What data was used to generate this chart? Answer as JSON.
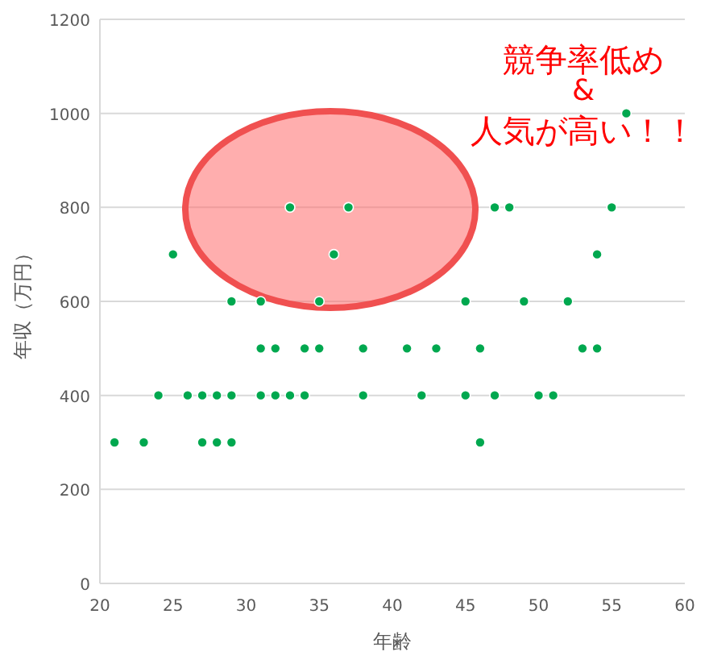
{
  "chart_data": {
    "type": "scatter",
    "xlabel": "年齢",
    "ylabel": "年収（万円）",
    "annotations": [
      "競争率低め",
      "&",
      "人気が高い！！"
    ],
    "xlim": [
      20,
      60
    ],
    "xticks": [
      20,
      25,
      30,
      35,
      40,
      45,
      50,
      55,
      60
    ],
    "ylim": [
      0,
      1200
    ],
    "yticks": [
      0,
      200,
      400,
      600,
      800,
      1000,
      1200
    ],
    "grid": "y",
    "marker": "circle",
    "series": [
      {
        "color": "#00a84f",
        "x": [
          21,
          23,
          27,
          28,
          29,
          46,
          24,
          26,
          27,
          28,
          29,
          31,
          32,
          33,
          34,
          38,
          42,
          45,
          47,
          50,
          51,
          31,
          32,
          34,
          35,
          38,
          41,
          43,
          46,
          53,
          54,
          29,
          31,
          35,
          45,
          49,
          52,
          25,
          36,
          54,
          33,
          37,
          47,
          48,
          55,
          56
        ],
        "values": [
          300,
          300,
          300,
          300,
          300,
          300,
          400,
          400,
          400,
          400,
          400,
          400,
          400,
          400,
          400,
          400,
          400,
          400,
          400,
          400,
          400,
          500,
          500,
          500,
          500,
          500,
          500,
          500,
          500,
          500,
          500,
          600,
          600,
          600,
          600,
          600,
          600,
          700,
          700,
          700,
          800,
          800,
          800,
          800,
          800,
          1000
        ]
      }
    ]
  }
}
